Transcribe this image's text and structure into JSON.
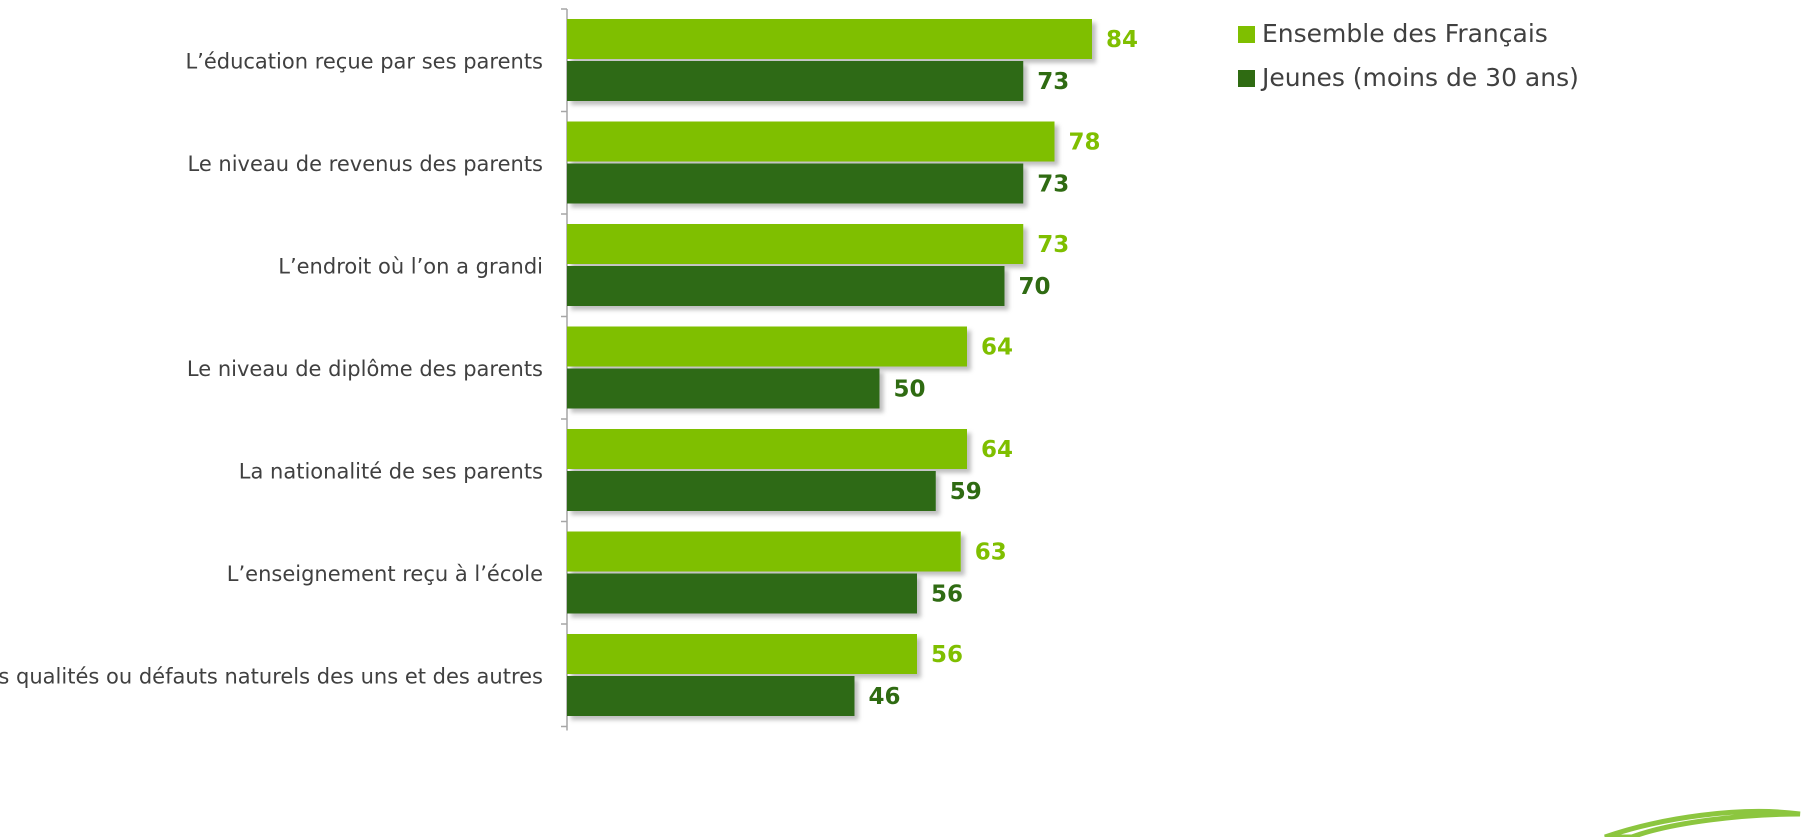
{
  "chart_data": {
    "type": "bar",
    "orientation": "horizontal",
    "categories": [
      "L’éducation reçue par ses parents",
      "Le niveau de revenus des parents",
      "L’endroit où l’on a grandi",
      "Le niveau de diplôme des parents",
      "La nationalité de ses parents",
      "L’enseignement reçu à l’école",
      "Les qualités ou défauts naturels des uns et des autres"
    ],
    "series": [
      {
        "name": "Ensemble des Français",
        "values": [
          84,
          78,
          73,
          64,
          64,
          63,
          56
        ],
        "color": "#7fbf00"
      },
      {
        "name": "Jeunes (moins de 30 ans)",
        "values": [
          73,
          73,
          70,
          50,
          59,
          56,
          46
        ],
        "color": "#2f6b12"
      }
    ],
    "xlim": [
      0,
      100
    ],
    "grid": false,
    "legend_position": "top-right",
    "data_labels": true
  }
}
